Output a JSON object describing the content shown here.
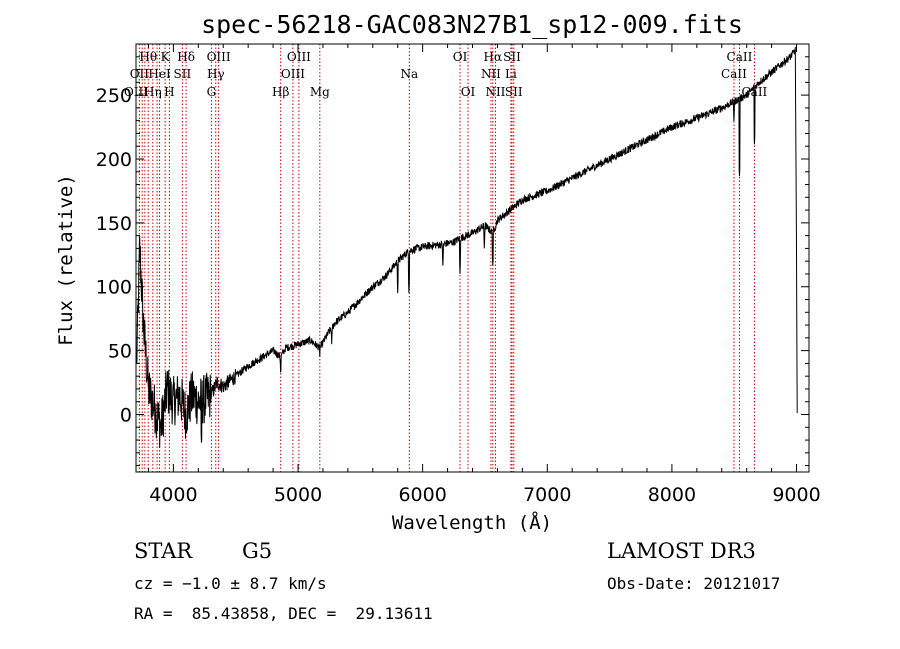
{
  "chart_data": {
    "type": "line",
    "title": "spec-56218-GAC083N27B1_sp12-009.fits",
    "xlabel": "Wavelength (Å)",
    "ylabel": "Flux (relative)",
    "xlim": [
      3700,
      9100
    ],
    "ylim": [
      -45,
      290
    ],
    "xticks": [
      4000,
      5000,
      6000,
      7000,
      8000,
      9000
    ],
    "yticks": [
      0,
      50,
      100,
      150,
      200,
      250
    ],
    "xtick_labels": [
      "4000",
      "5000",
      "6000",
      "7000",
      "8000",
      "9000"
    ],
    "ytick_labels": [
      "0",
      "50",
      "100",
      "150",
      "200",
      "250"
    ],
    "spectrum_anchors": [
      [
        3700,
        20
      ],
      [
        3730,
        130
      ],
      [
        3760,
        70
      ],
      [
        3800,
        20
      ],
      [
        3850,
        5
      ],
      [
        3900,
        -10
      ],
      [
        3950,
        20
      ],
      [
        4000,
        10
      ],
      [
        4050,
        15
      ],
      [
        4100,
        0
      ],
      [
        4150,
        15
      ],
      [
        4200,
        10
      ],
      [
        4250,
        12
      ],
      [
        4300,
        15
      ],
      [
        4350,
        25
      ],
      [
        4400,
        22
      ],
      [
        4500,
        30
      ],
      [
        4600,
        38
      ],
      [
        4700,
        44
      ],
      [
        4800,
        50
      ],
      [
        4861,
        45
      ],
      [
        4900,
        52
      ],
      [
        5000,
        55
      ],
      [
        5100,
        58
      ],
      [
        5175,
        52
      ],
      [
        5250,
        65
      ],
      [
        5300,
        72
      ],
      [
        5400,
        80
      ],
      [
        5500,
        90
      ],
      [
        5600,
        100
      ],
      [
        5700,
        108
      ],
      [
        5800,
        120
      ],
      [
        5890,
        128
      ],
      [
        5950,
        130
      ],
      [
        6050,
        132
      ],
      [
        6150,
        133
      ],
      [
        6250,
        135
      ],
      [
        6300,
        138
      ],
      [
        6400,
        142
      ],
      [
        6500,
        148
      ],
      [
        6563,
        142
      ],
      [
        6600,
        152
      ],
      [
        6700,
        160
      ],
      [
        6800,
        168
      ],
      [
        7000,
        175
      ],
      [
        7200,
        185
      ],
      [
        7400,
        195
      ],
      [
        7600,
        205
      ],
      [
        7800,
        215
      ],
      [
        8000,
        225
      ],
      [
        8200,
        232
      ],
      [
        8400,
        240
      ],
      [
        8500,
        245
      ],
      [
        8600,
        250
      ],
      [
        8700,
        260
      ],
      [
        8800,
        268
      ],
      [
        8900,
        276
      ],
      [
        8950,
        280
      ],
      [
        8990,
        285
      ],
      [
        9000,
        130
      ],
      [
        9005,
        0
      ]
    ],
    "spectrum_dips": [
      [
        4226,
        -25
      ],
      [
        4861,
        30
      ],
      [
        5175,
        45
      ],
      [
        5270,
        55
      ],
      [
        5800,
        95
      ],
      [
        5890,
        95
      ],
      [
        6162,
        115
      ],
      [
        6300,
        110
      ],
      [
        6495,
        130
      ],
      [
        6563,
        115
      ],
      [
        8498,
        228
      ],
      [
        8542,
        185
      ],
      [
        8662,
        210
      ]
    ],
    "line_labels": [
      {
        "text": "Hθ",
        "wl": 3798,
        "row": 0
      },
      {
        "text": "OII",
        "wl": 3727,
        "row": 1
      },
      {
        "text": "OIII",
        "wl": 3700,
        "row": 2
      },
      {
        "text": "K",
        "wl": 3934,
        "row": 0
      },
      {
        "text": "HeI",
        "wl": 3889,
        "row": 1
      },
      {
        "text": "Hη",
        "wl": 3835,
        "row": 2
      },
      {
        "text": "Hδ",
        "wl": 4102,
        "row": 0
      },
      {
        "text": "SII",
        "wl": 4072,
        "row": 1
      },
      {
        "text": "H",
        "wl": 3968,
        "row": 2
      },
      {
        "text": "OIII",
        "wl": 4363,
        "row": 0
      },
      {
        "text": "Hγ",
        "wl": 4340,
        "row": 1
      },
      {
        "text": "G",
        "wl": 4305,
        "row": 2
      },
      {
        "text": "Hβ",
        "wl": 4861,
        "row": 2
      },
      {
        "text": "OIII",
        "wl": 5007,
        "row": 0
      },
      {
        "text": "OIII",
        "wl": 4959,
        "row": 1
      },
      {
        "text": "Mg",
        "wl": 5175,
        "row": 2
      },
      {
        "text": "Na",
        "wl": 5893,
        "row": 1
      },
      {
        "text": "OI",
        "wl": 6300,
        "row": 0
      },
      {
        "text": "OI",
        "wl": 6364,
        "row": 2
      },
      {
        "text": "Hα",
        "wl": 6563,
        "row": 0
      },
      {
        "text": "SII",
        "wl": 6717,
        "row": 0
      },
      {
        "text": "NII",
        "wl": 6548,
        "row": 1
      },
      {
        "text": "Li",
        "wl": 6708,
        "row": 1
      },
      {
        "text": "NII",
        "wl": 6584,
        "row": 2
      },
      {
        "text": "SII",
        "wl": 6731,
        "row": 2
      },
      {
        "text": "CaII",
        "wl": 8542,
        "row": 0
      },
      {
        "text": "CaII",
        "wl": 8498,
        "row": 1
      },
      {
        "text": "CaII",
        "wl": 8662,
        "row": 2
      }
    ],
    "marker_lines": [
      3727,
      3750,
      3771,
      3798,
      3835,
      3869,
      3889,
      3934,
      3968,
      4072,
      4102,
      4305,
      4340,
      4363,
      4861,
      4959,
      5007,
      5175,
      5893,
      6300,
      6364,
      6548,
      6563,
      6584,
      6708,
      6717,
      6731,
      8498,
      8542,
      8662
    ]
  },
  "info": {
    "object_class": "STAR",
    "subclass": "G5",
    "survey": "LAMOST DR3",
    "redshift": "cz = −1.0 ± 8.7 km/s",
    "obs_date": "Obs-Date: 20121017",
    "coords": "RA =  85.43858, DEC =  29.13611"
  },
  "colors": {
    "marker": "#cc0000",
    "spectrum": "#000000"
  }
}
